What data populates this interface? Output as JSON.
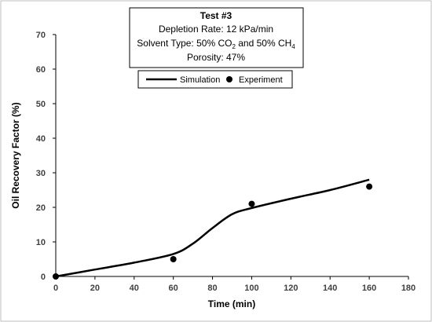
{
  "chart_data": {
    "type": "line",
    "title_box": {
      "title": "Test #3",
      "line1": "Depletion Rate: 12 kPa/min",
      "line2": {
        "prefix": "Solvent Type: 50% CO",
        "sub1": "2",
        "middle": " and 50% CH",
        "sub2": "4"
      },
      "line3": "Porosity: 47%"
    },
    "xlabel": "Time (min)",
    "ylabel": "Oil Recovery Factor (%)",
    "xlim": [
      0,
      180
    ],
    "ylim": [
      0,
      70
    ],
    "xticks": [
      0,
      20,
      40,
      60,
      80,
      100,
      120,
      140,
      160,
      180
    ],
    "yticks": [
      0,
      10,
      20,
      30,
      40,
      50,
      60,
      70
    ],
    "grid": false,
    "legend_position": "top",
    "series": [
      {
        "name": "Simulation",
        "style": "line",
        "color": "#000000",
        "x": [
          0,
          20,
          40,
          60,
          70,
          80,
          90,
          100,
          120,
          140,
          160
        ],
        "y": [
          0,
          2,
          4,
          6.5,
          9.5,
          14,
          18,
          19.8,
          22.5,
          25,
          28
        ]
      },
      {
        "name": "Experiment",
        "style": "marker",
        "color": "#000000",
        "x": [
          0,
          60,
          100,
          160
        ],
        "y": [
          0,
          5,
          21,
          26
        ]
      }
    ]
  }
}
